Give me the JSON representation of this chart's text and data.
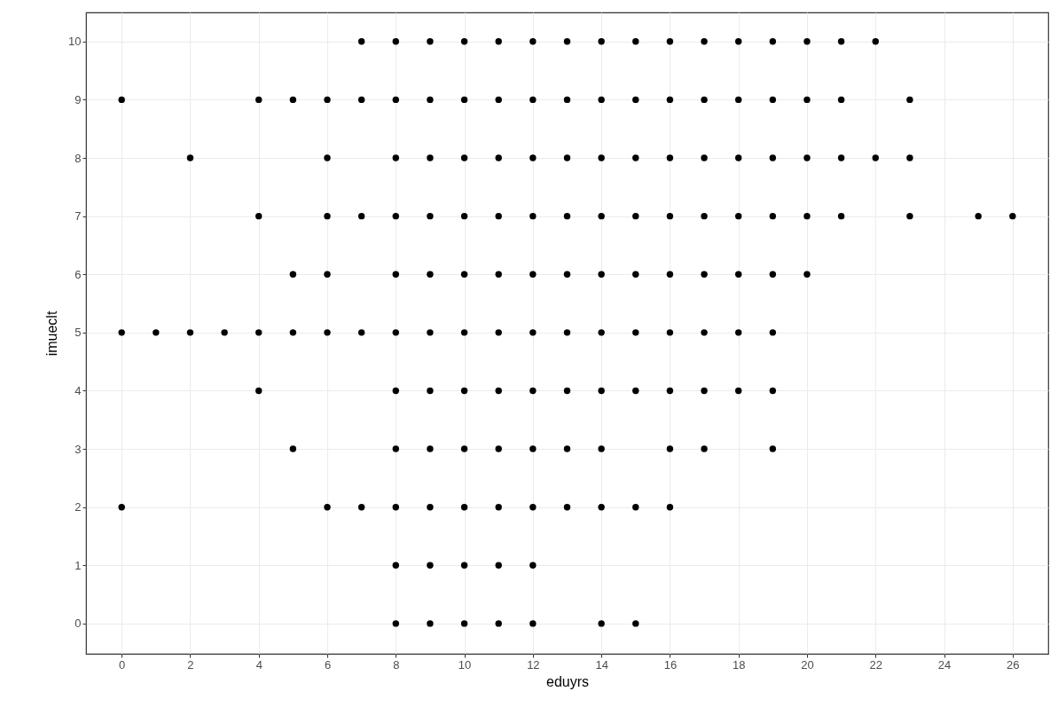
{
  "chart_data": {
    "type": "scatter",
    "xlabel": "eduyrs",
    "ylabel": "imueclt",
    "xlim": [
      -1.04,
      27.04
    ],
    "ylim": [
      -0.52,
      10.5
    ],
    "xticks": [
      0,
      2,
      4,
      6,
      8,
      10,
      12,
      14,
      16,
      18,
      20,
      22,
      24,
      26
    ],
    "yticks": [
      0,
      1,
      2,
      3,
      4,
      5,
      6,
      7,
      8,
      9,
      10
    ],
    "grid": true,
    "marker": "circle",
    "series": [
      {
        "color": "#000000",
        "x": [
          7,
          8,
          9,
          10,
          11,
          12,
          13,
          14,
          15,
          16,
          17,
          18,
          19,
          20,
          21,
          22,
          0,
          4,
          5,
          6,
          7,
          8,
          9,
          10,
          11,
          12,
          13,
          14,
          15,
          16,
          17,
          18,
          19,
          20,
          21,
          23,
          2,
          6,
          8,
          9,
          10,
          11,
          12,
          13,
          14,
          15,
          16,
          17,
          18,
          19,
          20,
          21,
          22,
          23,
          4,
          6,
          7,
          8,
          9,
          10,
          11,
          12,
          13,
          14,
          15,
          16,
          17,
          18,
          19,
          20,
          21,
          23,
          25,
          26,
          5,
          6,
          8,
          9,
          10,
          11,
          12,
          13,
          14,
          15,
          16,
          17,
          18,
          19,
          20,
          0,
          1,
          2,
          3,
          4,
          5,
          6,
          7,
          8,
          9,
          10,
          11,
          12,
          13,
          14,
          15,
          16,
          17,
          18,
          19,
          4,
          8,
          9,
          10,
          11,
          12,
          13,
          14,
          15,
          16,
          17,
          18,
          19,
          5,
          8,
          9,
          10,
          11,
          12,
          13,
          14,
          16,
          17,
          19,
          0,
          6,
          7,
          8,
          9,
          10,
          11,
          12,
          13,
          14,
          15,
          16,
          8,
          9,
          10,
          11,
          12,
          8,
          9,
          10,
          11,
          12,
          14,
          15
        ],
        "values": [
          10,
          10,
          10,
          10,
          10,
          10,
          10,
          10,
          10,
          10,
          10,
          10,
          10,
          10,
          10,
          10,
          9,
          9,
          9,
          9,
          9,
          9,
          9,
          9,
          9,
          9,
          9,
          9,
          9,
          9,
          9,
          9,
          9,
          9,
          9,
          9,
          8,
          8,
          8,
          8,
          8,
          8,
          8,
          8,
          8,
          8,
          8,
          8,
          8,
          8,
          8,
          8,
          8,
          8,
          7,
          7,
          7,
          7,
          7,
          7,
          7,
          7,
          7,
          7,
          7,
          7,
          7,
          7,
          7,
          7,
          7,
          7,
          7,
          7,
          6,
          6,
          6,
          6,
          6,
          6,
          6,
          6,
          6,
          6,
          6,
          6,
          6,
          6,
          6,
          5,
          5,
          5,
          5,
          5,
          5,
          5,
          5,
          5,
          5,
          5,
          5,
          5,
          5,
          5,
          5,
          5,
          5,
          5,
          5,
          4,
          4,
          4,
          4,
          4,
          4,
          4,
          4,
          4,
          4,
          4,
          4,
          4,
          3,
          3,
          3,
          3,
          3,
          3,
          3,
          3,
          3,
          3,
          3,
          2,
          2,
          2,
          2,
          2,
          2,
          2,
          2,
          2,
          2,
          2,
          2,
          1,
          1,
          1,
          1,
          1,
          0,
          0,
          0,
          0,
          0,
          0,
          0
        ]
      }
    ]
  }
}
